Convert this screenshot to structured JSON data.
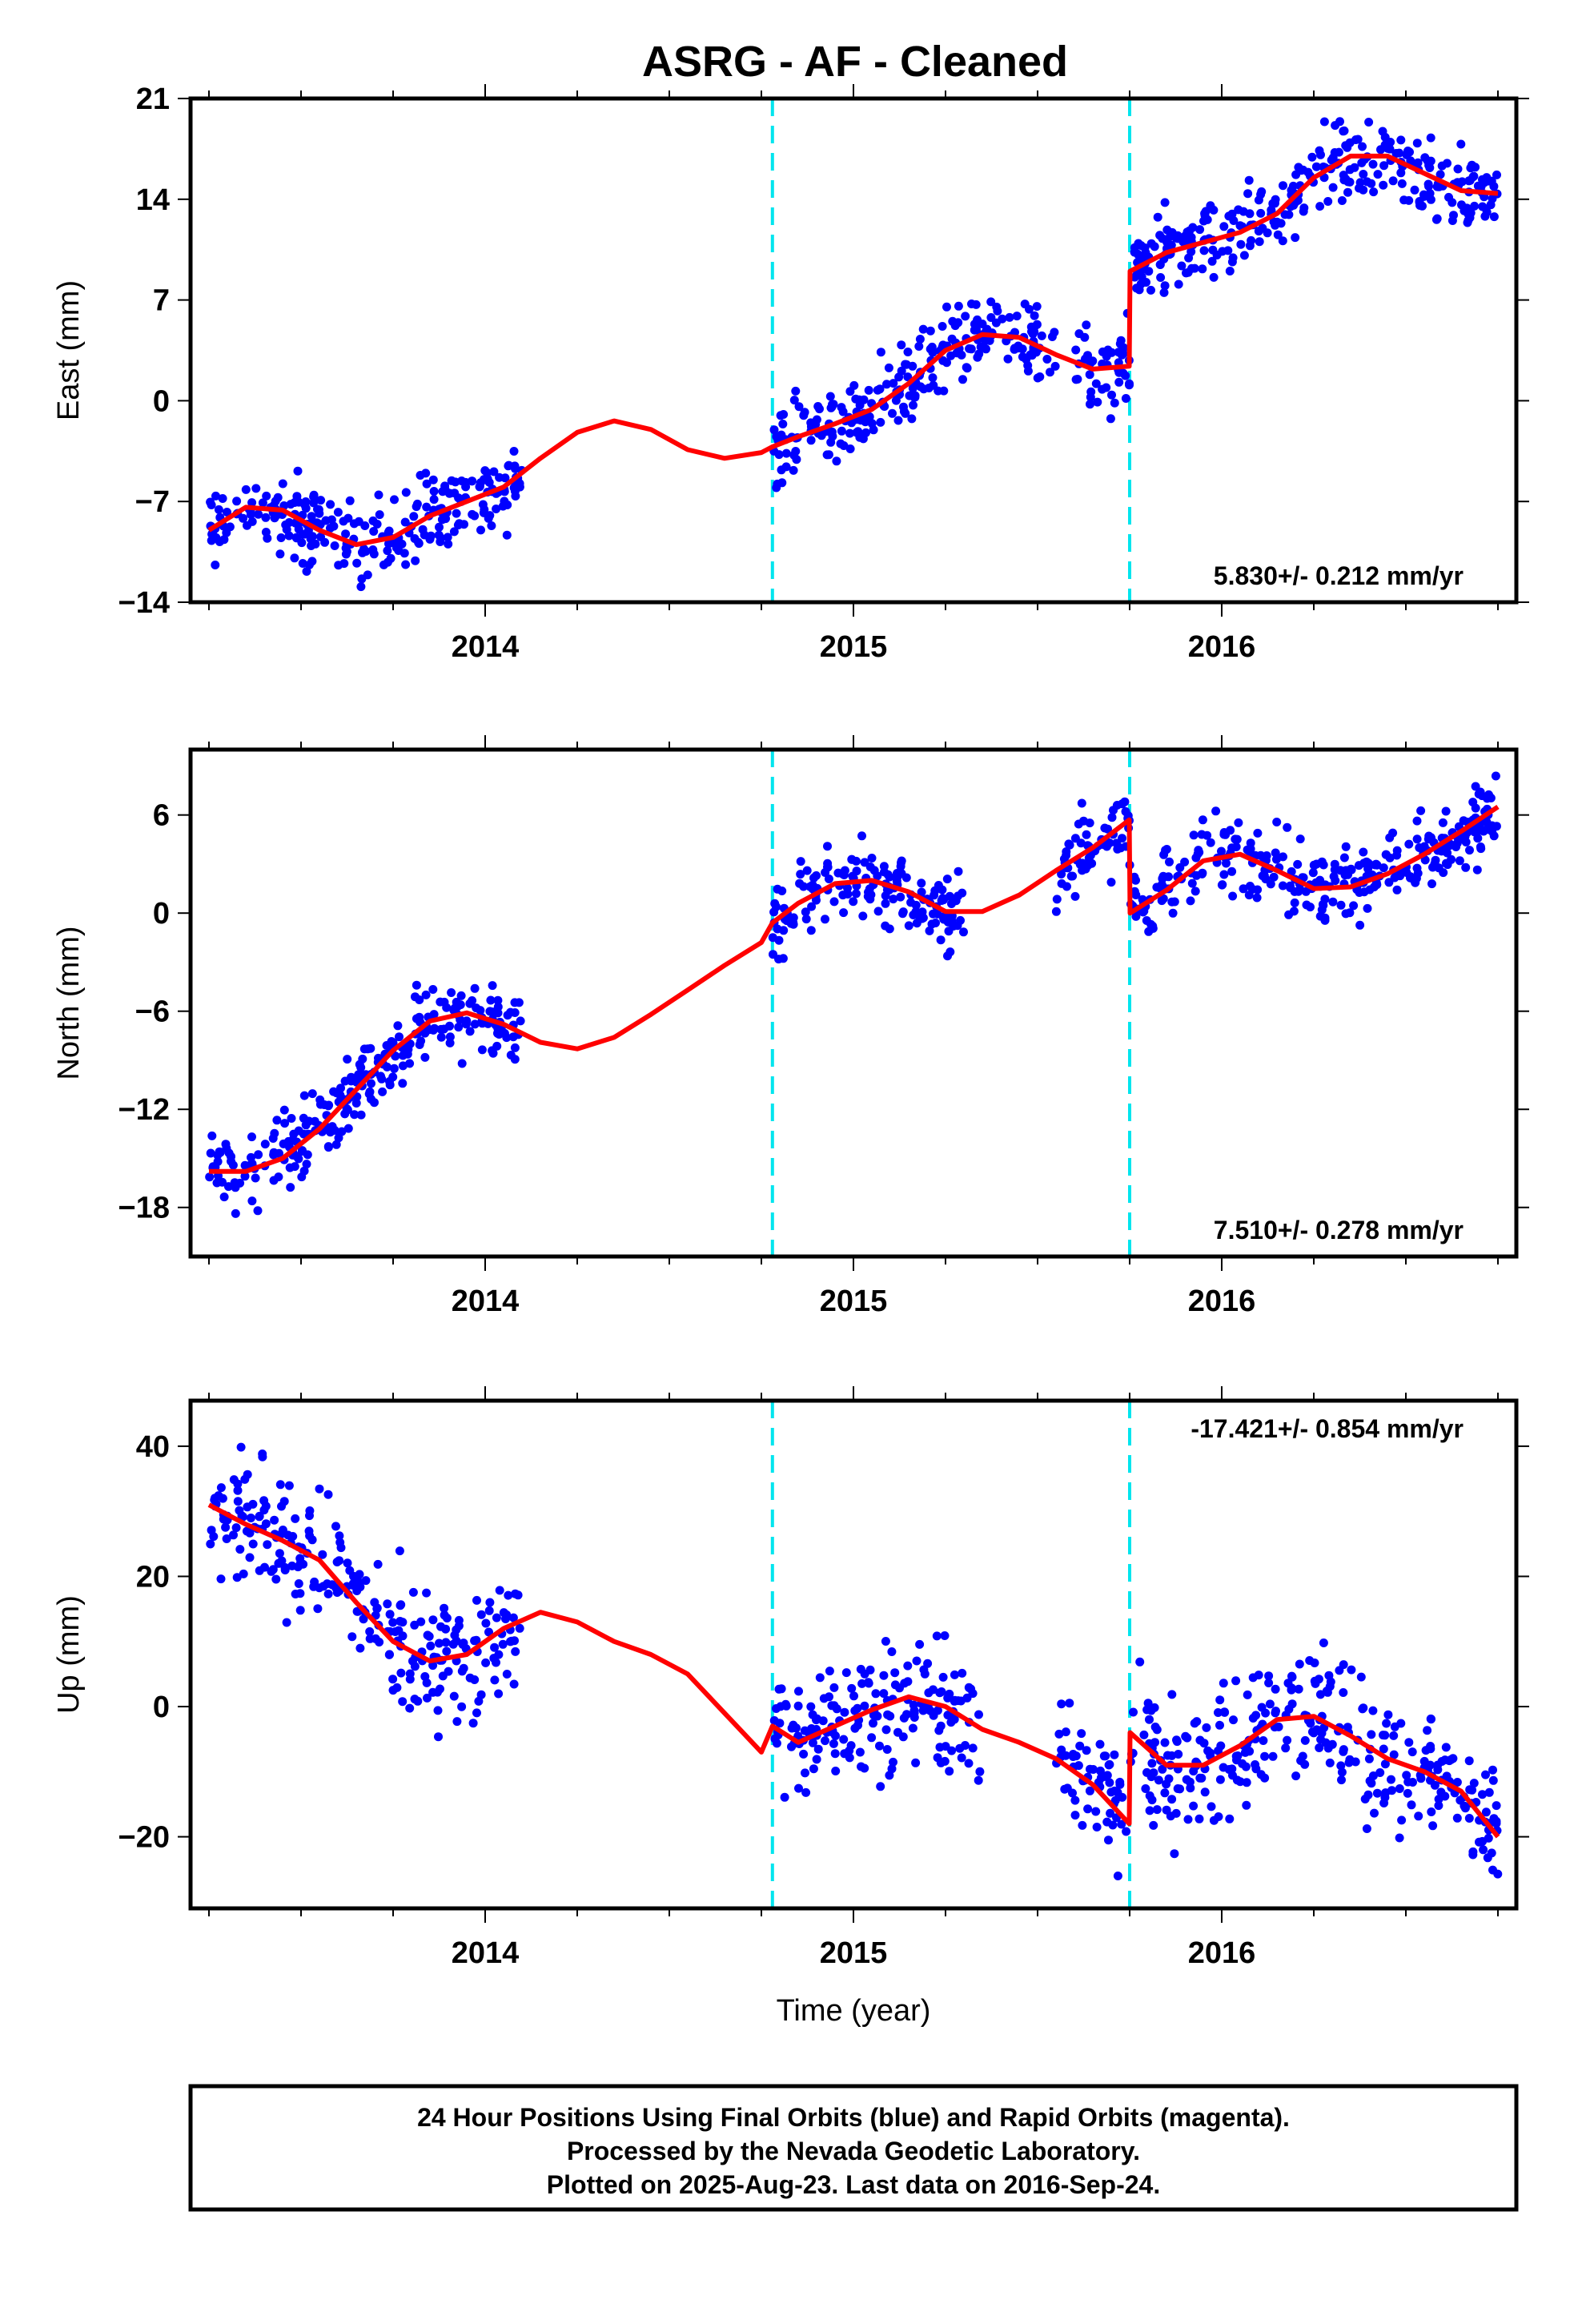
{
  "title": "ASRG  - AF - Cleaned",
  "chart_data": [
    {
      "type": "scatter",
      "panel": "east",
      "ylabel": "East (mm)",
      "xlabel": "",
      "ylim": [
        -14,
        21
      ],
      "yticks": [
        -14,
        -7,
        0,
        7,
        14,
        21
      ],
      "xlim": [
        2013.2,
        2016.8
      ],
      "xticks": [
        2014,
        2015,
        2016
      ],
      "rate_label": "5.830+/- 0.212 mm/yr",
      "rate_position": "bottom-right",
      "steps": [
        2014.78,
        2015.75
      ],
      "series": [
        {
          "name": "Final Orbits (blue)",
          "color": "#0000ff",
          "segments": [
            [
              2013.25,
              2014.1
            ],
            [
              2014.78,
              2015.55
            ],
            [
              2015.6,
              2015.75
            ],
            [
              2015.75,
              2016.75
            ]
          ]
        },
        {
          "name": "model",
          "color": "#ff0000",
          "x": [
            2013.25,
            2013.35,
            2013.45,
            2013.55,
            2013.65,
            2013.75,
            2013.85,
            2013.95,
            2014.05,
            2014.15,
            2014.25,
            2014.35,
            2014.45,
            2014.55,
            2014.65,
            2014.75,
            2014.78,
            2014.85,
            2014.95,
            2015.05,
            2015.15,
            2015.25,
            2015.35,
            2015.45,
            2015.55,
            2015.65,
            2015.749,
            2015.751,
            2015.85,
            2015.95,
            2016.05,
            2016.15,
            2016.25,
            2016.35,
            2016.45,
            2016.55,
            2016.65,
            2016.75
          ],
          "y": [
            -9,
            -7.4,
            -7.6,
            -9,
            -10,
            -9.5,
            -8,
            -7,
            -6,
            -4,
            -2.2,
            -1.4,
            -2,
            -3.4,
            -4,
            -3.6,
            -3.2,
            -2.5,
            -1.6,
            -0.6,
            1.2,
            3.5,
            4.6,
            4.4,
            3.2,
            2.2,
            2.4,
            9,
            10.3,
            11,
            11.7,
            13,
            15.5,
            17,
            17,
            15.8,
            14.6,
            14.4
          ]
        }
      ]
    },
    {
      "type": "scatter",
      "panel": "north",
      "ylabel": "North (mm)",
      "xlabel": "",
      "ylim": [
        -21,
        10
      ],
      "yticks": [
        -18,
        -12,
        -6,
        0,
        6
      ],
      "xlim": [
        2013.2,
        2016.8
      ],
      "xticks": [
        2014,
        2015,
        2016
      ],
      "rate_label": "7.510+/- 0.278 mm/yr",
      "rate_position": "bottom-right",
      "steps": [
        2014.78,
        2015.75
      ],
      "series": [
        {
          "name": "Final Orbits (blue)",
          "color": "#0000ff",
          "segments": [
            [
              2013.25,
              2014.1
            ],
            [
              2014.78,
              2015.3
            ],
            [
              2015.55,
              2015.75
            ],
            [
              2015.75,
              2016.75
            ]
          ]
        },
        {
          "name": "model",
          "color": "#ff0000",
          "x": [
            2013.25,
            2013.35,
            2013.45,
            2013.55,
            2013.65,
            2013.75,
            2013.85,
            2013.95,
            2014.05,
            2014.15,
            2014.25,
            2014.35,
            2014.45,
            2014.55,
            2014.65,
            2014.75,
            2014.78,
            2014.85,
            2014.95,
            2015.05,
            2015.15,
            2015.25,
            2015.35,
            2015.45,
            2015.55,
            2015.65,
            2015.749,
            2015.751,
            2015.85,
            2015.95,
            2016.05,
            2016.15,
            2016.25,
            2016.35,
            2016.45,
            2016.55,
            2016.65,
            2016.75
          ],
          "y": [
            -15.8,
            -15.8,
            -15,
            -13.2,
            -10.8,
            -8.4,
            -6.6,
            -6.1,
            -6.8,
            -7.9,
            -8.3,
            -7.6,
            -6.2,
            -4.7,
            -3.2,
            -1.8,
            -0.6,
            0.6,
            1.8,
            2,
            1.3,
            0.1,
            0.1,
            1.1,
            2.6,
            4,
            5.7,
            0,
            1.4,
            3.2,
            3.6,
            2.6,
            1.5,
            1.6,
            2.4,
            3.6,
            5,
            6.5
          ]
        }
      ]
    },
    {
      "type": "scatter",
      "panel": "up",
      "ylabel": "Up (mm)",
      "xlabel": "Time (year)",
      "ylim": [
        -31,
        47
      ],
      "yticks": [
        -20,
        0,
        20,
        40
      ],
      "xlim": [
        2013.2,
        2016.8
      ],
      "xticks": [
        2014,
        2015,
        2016
      ],
      "rate_label": "-17.421+/- 0.854 mm/yr",
      "rate_position": "top-right",
      "steps": [
        2014.78,
        2015.75
      ],
      "series": [
        {
          "name": "Final Orbits (blue)",
          "color": "#0000ff",
          "segments": [
            [
              2013.25,
              2014.1
            ],
            [
              2014.78,
              2015.35
            ],
            [
              2015.55,
              2015.75
            ],
            [
              2015.75,
              2016.75
            ]
          ]
        },
        {
          "name": "model",
          "color": "#ff0000",
          "x": [
            2013.25,
            2013.35,
            2013.45,
            2013.55,
            2013.65,
            2013.75,
            2013.85,
            2013.95,
            2014.05,
            2014.15,
            2014.25,
            2014.35,
            2014.45,
            2014.55,
            2014.65,
            2014.75,
            2014.78,
            2014.85,
            2014.95,
            2015.05,
            2015.15,
            2015.25,
            2015.35,
            2015.45,
            2015.55,
            2015.65,
            2015.749,
            2015.751,
            2015.85,
            2015.95,
            2016.05,
            2016.15,
            2016.25,
            2016.35,
            2016.45,
            2016.55,
            2016.65,
            2016.75
          ],
          "y": [
            31,
            28,
            25.5,
            22.5,
            16,
            10,
            7,
            8,
            12,
            14.5,
            13,
            10,
            8,
            5,
            -1,
            -7,
            -3,
            -5.5,
            -3,
            -0.5,
            1.5,
            0,
            -3.5,
            -5.5,
            -8,
            -12,
            -18,
            -4,
            -9,
            -9,
            -6,
            -2,
            -1.5,
            -4.5,
            -8,
            -10,
            -13,
            -20
          ]
        }
      ]
    }
  ],
  "footer": {
    "line1": "24 Hour Positions Using Final Orbits (blue) and Rapid Orbits (magenta).",
    "line2": "Processed by the Nevada Geodetic Laboratory.",
    "line3": "Plotted on 2025-Aug-23. Last data on 2016-Sep-24."
  }
}
